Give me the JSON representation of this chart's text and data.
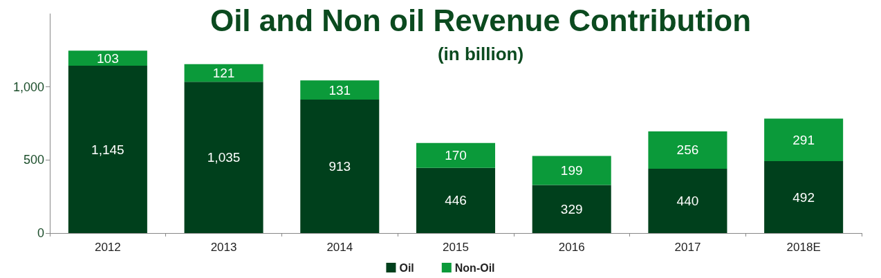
{
  "chart_data": {
    "type": "bar",
    "title": "Oil and Non oil Revenue Contribution",
    "subtitle": "(in billion)",
    "categories": [
      "2012",
      "2013",
      "2014",
      "2015",
      "2016",
      "2017",
      "2018E"
    ],
    "series": [
      {
        "name": "Oil",
        "color": "#00401c",
        "values": [
          1145,
          1035,
          913,
          446,
          329,
          440,
          492
        ],
        "value_labels": [
          "1,145",
          "1,035",
          "913",
          "446",
          "329",
          "440",
          "492"
        ]
      },
      {
        "name": "Non-Oil",
        "color": "#0b9a3a",
        "values": [
          103,
          121,
          131,
          170,
          199,
          256,
          291
        ],
        "value_labels": [
          "103",
          "121",
          "131",
          "170",
          "199",
          "256",
          "291"
        ]
      }
    ],
    "stacked": true,
    "legend": "bottom",
    "grid": false,
    "ylim": [
      0,
      1500
    ],
    "yticks": [
      0,
      500,
      {
        "value": 1000,
        "label": "1,000"
      }
    ]
  }
}
